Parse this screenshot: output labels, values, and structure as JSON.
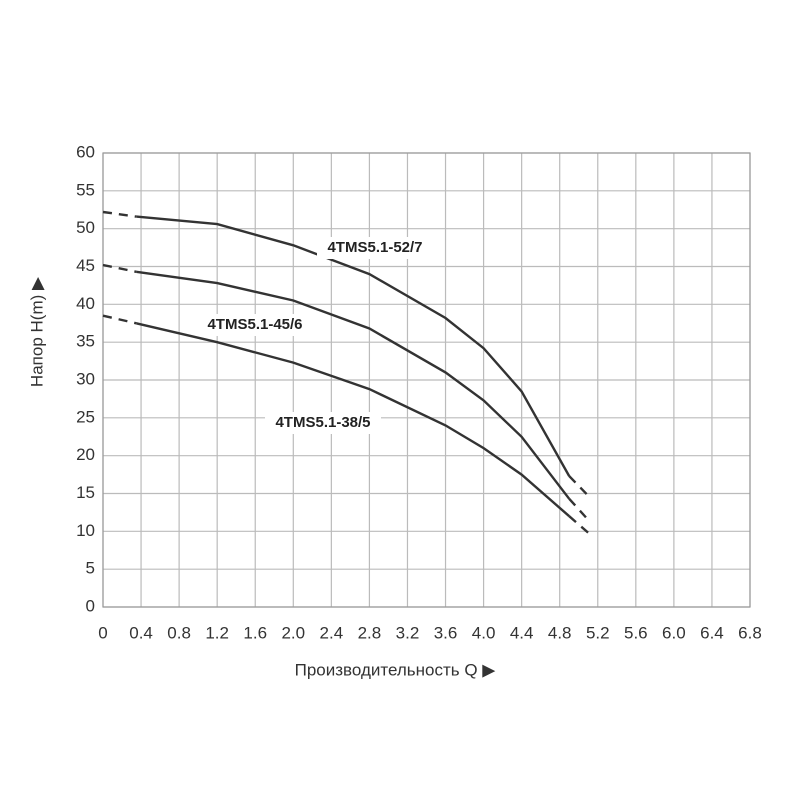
{
  "chart_data": {
    "type": "line",
    "x_label": "Производительность Q ▶",
    "y_label": "Напор H(m) ▶",
    "x": [
      0,
      0.35,
      1.2,
      2.0,
      2.8,
      3.6,
      4.0,
      4.4,
      4.9,
      5.1
    ],
    "series": [
      {
        "name": "4TMS5.1-52/7",
        "color": "#333333",
        "values": [
          52.2,
          51.6,
          50.6,
          47.8,
          44,
          38.2,
          34.2,
          28.5,
          17.3,
          14.7
        ]
      },
      {
        "name": "4TMS5.1-45/6",
        "color": "#333333",
        "values": [
          45.2,
          44.3,
          42.8,
          40.5,
          36.8,
          31,
          27.3,
          22.5,
          14.3,
          11.5
        ]
      },
      {
        "name": "4TMS5.1-38/5",
        "color": "#333333",
        "values": [
          38.5,
          37.5,
          35,
          32.3,
          28.8,
          24,
          21,
          17.5,
          12,
          9.8
        ]
      }
    ],
    "xlim": [
      0,
      6.8
    ],
    "xticks": [
      0,
      0.4,
      0.8,
      1.2,
      1.6,
      {
        "value": 2,
        "label": "2.0"
      },
      2.4,
      2.8,
      3.2,
      3.6,
      {
        "value": 4,
        "label": "4.0"
      },
      4.4,
      4.8,
      5.2,
      5.6,
      {
        "value": 6,
        "label": "6.0"
      },
      6.4,
      6.8
    ],
    "ylim": [
      0,
      60
    ],
    "yticks": [
      0,
      5,
      10,
      15,
      20,
      25,
      30,
      35,
      40,
      45,
      50,
      55,
      60
    ],
    "grid": true
  }
}
